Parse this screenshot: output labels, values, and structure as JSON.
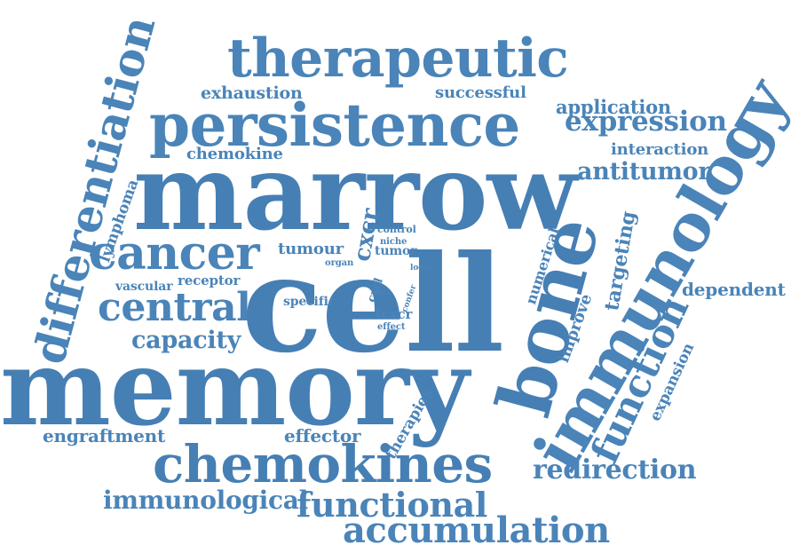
{
  "words": {
    "cell": "cell",
    "memory": "memory",
    "marrow": "marrow",
    "persistence": "persistence",
    "therapeutic": "therapeutic",
    "differentiation": "differentiation",
    "bone": "bone",
    "immunology": "immunology",
    "function": "function",
    "chemokines": "chemokines",
    "cancer": "cancer",
    "central": "central",
    "capacity": "capacity",
    "functional": "functional",
    "accumulation": "accumulation",
    "immunological": "immunological",
    "redirection": "redirection",
    "engraftment": "engraftment",
    "effector": "effector",
    "expression": "expression",
    "antitumor": "antitumor",
    "application": "application",
    "interaction": "interaction",
    "exhaustion": "exhaustion",
    "successful": "successful",
    "chemokine": "chemokine",
    "lymphoma": "lymphoma",
    "dependent": "dependent",
    "expansion": "expansion",
    "targeting": "targeting",
    "improve": "improve",
    "numerical": "numerical",
    "therapies": "therapies",
    "tumour": "tumour",
    "tumor": "tumor",
    "control": "control",
    "niche": "niche",
    "organ": "organ",
    "cxcr": "cxcr",
    "specific": "specific",
    "vascular": "vascular",
    "receptor": "receptor",
    "tcxcr": "tcxcr",
    "effect": "effect",
    "cxcl": "cxcl",
    "acc": "acc",
    "confer": "confer",
    "local": "local"
  },
  "colors": {
    "primary": "#4a84b8",
    "background": "#ffffff"
  }
}
